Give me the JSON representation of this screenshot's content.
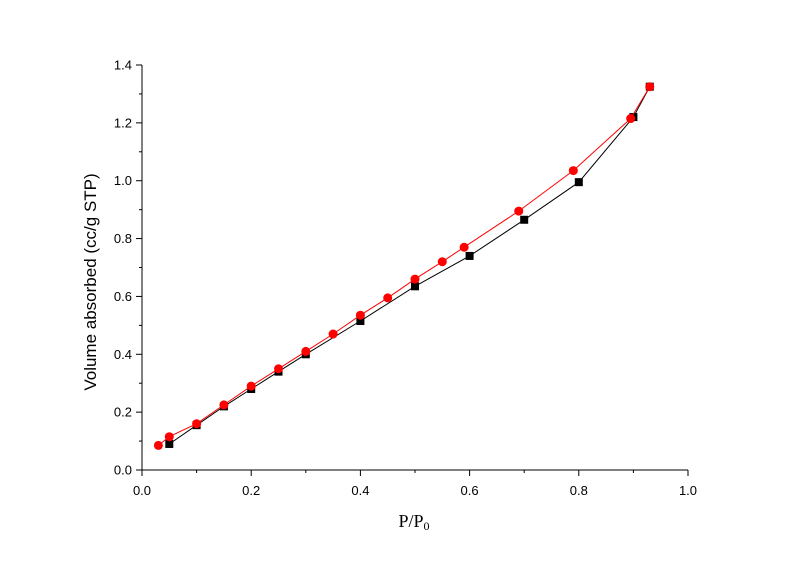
{
  "chart_data": {
    "type": "scatter",
    "title": "",
    "xlabel": "P/P0",
    "ylabel": "Volume absorbed (cc/g STP)",
    "xlim": [
      0.0,
      1.0
    ],
    "ylim": [
      0.0,
      1.4
    ],
    "x_ticks": [
      "0.0",
      "0.2",
      "0.4",
      "0.6",
      "0.8",
      "1.0"
    ],
    "y_ticks": [
      "0.0",
      "0.2",
      "0.4",
      "0.6",
      "0.8",
      "1.0",
      "1.2",
      "1.4"
    ],
    "grid": false,
    "series": [
      {
        "marker": "square",
        "color": "#000000",
        "x": [
          0.05,
          0.1,
          0.15,
          0.2,
          0.25,
          0.3,
          0.4,
          0.5,
          0.6,
          0.7,
          0.8,
          0.9,
          0.93
        ],
        "y": [
          0.09,
          0.155,
          0.22,
          0.28,
          0.34,
          0.4,
          0.515,
          0.635,
          0.74,
          0.865,
          0.995,
          1.22,
          1.325
        ]
      },
      {
        "marker": "circle",
        "color": "#ff0000",
        "x": [
          0.03,
          0.05,
          0.1,
          0.15,
          0.2,
          0.25,
          0.3,
          0.35,
          0.4,
          0.45,
          0.5,
          0.55,
          0.59,
          0.69,
          0.79,
          0.895,
          0.93
        ],
        "y": [
          0.085,
          0.115,
          0.16,
          0.225,
          0.29,
          0.35,
          0.41,
          0.47,
          0.535,
          0.595,
          0.66,
          0.72,
          0.77,
          0.895,
          1.035,
          1.215,
          1.325
        ]
      }
    ]
  }
}
